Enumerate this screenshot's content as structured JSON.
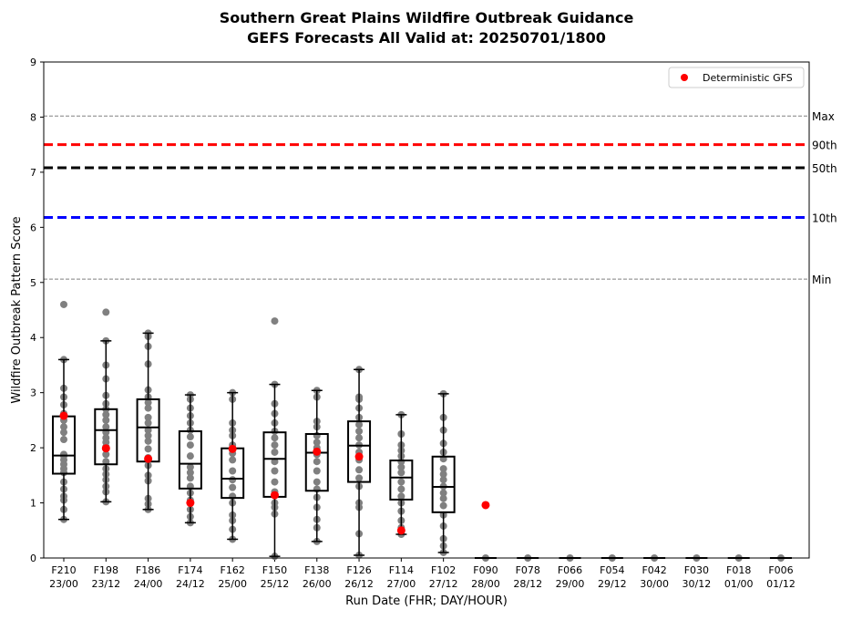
{
  "chart_data": {
    "type": "box",
    "title_line1": "Southern Great Plains Wildfire Outbreak Guidance",
    "title_line2": "GEFS Forecasts All Valid at: 20250701/1800",
    "xlabel": "Run Date (FHR; DAY/HOUR)",
    "ylabel": "Wildfire Outbreak Pattern Score",
    "ylim": [
      0,
      9
    ],
    "yticks": [
      "0",
      "1",
      "2",
      "3",
      "4",
      "5",
      "6",
      "7",
      "8",
      "9"
    ],
    "legend": {
      "label": "Deterministic GFS",
      "position": "top-right"
    },
    "colors": {
      "ensemble_point": "#808080",
      "deterministic": "#ff0000",
      "p90": "#ff0000",
      "p50": "#000000",
      "p10": "#0000ff",
      "minmax": "#808080"
    },
    "climatology_lines": [
      {
        "label": "Max",
        "value": 8.02,
        "style": "thin-dashed",
        "color": "#808080"
      },
      {
        "label": "90th",
        "value": 7.5,
        "style": "thick-dashed",
        "color": "#ff0000"
      },
      {
        "label": "50th",
        "value": 7.08,
        "style": "thick-dashed",
        "color": "#000000"
      },
      {
        "label": "10th",
        "value": 6.18,
        "style": "thick-dashed",
        "color": "#0000ff"
      },
      {
        "label": "Min",
        "value": 5.06,
        "style": "thin-dashed",
        "color": "#808080"
      }
    ],
    "categories": [
      {
        "fhr": "F210",
        "date": "23/00",
        "whisker_low": 0.7,
        "q1": 1.53,
        "median": 1.86,
        "q3": 2.57,
        "whisker_high": 3.6,
        "deterministic": 2.58,
        "members": [
          0.7,
          0.88,
          1.05,
          1.12,
          1.25,
          1.38,
          1.55,
          1.62,
          1.7,
          1.78,
          1.85,
          1.88,
          2.15,
          2.28,
          2.38,
          2.5,
          2.62,
          2.78,
          2.92,
          3.08,
          3.6,
          4.6
        ]
      },
      {
        "fhr": "F198",
        "date": "23/12",
        "whisker_low": 1.02,
        "q1": 1.7,
        "median": 2.32,
        "q3": 2.7,
        "whisker_high": 3.94,
        "deterministic": 1.99,
        "members": [
          1.02,
          1.2,
          1.3,
          1.42,
          1.52,
          1.62,
          1.75,
          1.88,
          2.02,
          2.1,
          2.18,
          2.28,
          2.38,
          2.5,
          2.6,
          2.7,
          2.8,
          2.95,
          3.25,
          3.5,
          3.94,
          4.46
        ]
      },
      {
        "fhr": "F186",
        "date": "24/00",
        "whisker_low": 0.88,
        "q1": 1.75,
        "median": 2.37,
        "q3": 2.88,
        "whisker_high": 4.08,
        "deterministic": 1.8,
        "members": [
          0.88,
          0.98,
          1.08,
          1.4,
          1.5,
          1.68,
          1.82,
          1.98,
          2.12,
          2.22,
          2.32,
          2.45,
          2.55,
          2.72,
          2.82,
          2.92,
          3.05,
          3.52,
          3.84,
          4.02,
          4.08
        ]
      },
      {
        "fhr": "F174",
        "date": "24/12",
        "whisker_low": 0.64,
        "q1": 1.26,
        "median": 1.71,
        "q3": 2.3,
        "whisker_high": 2.96,
        "deterministic": 1.0,
        "members": [
          0.64,
          0.75,
          0.88,
          1.05,
          1.18,
          1.3,
          1.45,
          1.55,
          1.65,
          1.85,
          2.05,
          2.2,
          2.32,
          2.45,
          2.58,
          2.72,
          2.88,
          2.96
        ]
      },
      {
        "fhr": "F162",
        "date": "25/00",
        "whisker_low": 0.34,
        "q1": 1.09,
        "median": 1.44,
        "q3": 1.99,
        "whisker_high": 3.0,
        "deterministic": 1.98,
        "members": [
          0.34,
          0.52,
          0.68,
          0.78,
          1.0,
          1.12,
          1.28,
          1.42,
          1.58,
          1.78,
          1.9,
          2.05,
          2.22,
          2.32,
          2.45,
          2.88,
          3.0
        ]
      },
      {
        "fhr": "F150",
        "date": "25/12",
        "whisker_low": 0.03,
        "q1": 1.11,
        "median": 1.8,
        "q3": 2.28,
        "whisker_high": 3.15,
        "deterministic": 1.14,
        "members": [
          0.03,
          0.8,
          0.92,
          1.0,
          1.2,
          1.38,
          1.58,
          1.75,
          1.92,
          2.05,
          2.18,
          2.3,
          2.45,
          2.62,
          2.8,
          3.15,
          4.3
        ]
      },
      {
        "fhr": "F138",
        "date": "26/00",
        "whisker_low": 0.3,
        "q1": 1.22,
        "median": 1.91,
        "q3": 2.25,
        "whisker_high": 3.04,
        "deterministic": 1.93,
        "members": [
          0.3,
          0.55,
          0.7,
          0.92,
          1.1,
          1.25,
          1.38,
          1.58,
          1.75,
          1.88,
          2.0,
          2.1,
          2.22,
          2.38,
          2.48,
          2.92,
          3.04
        ]
      },
      {
        "fhr": "F126",
        "date": "26/12",
        "whisker_low": 0.05,
        "q1": 1.38,
        "median": 2.04,
        "q3": 2.48,
        "whisker_high": 3.42,
        "deterministic": 1.84,
        "members": [
          0.05,
          0.44,
          0.92,
          1.0,
          1.3,
          1.45,
          1.6,
          1.78,
          1.92,
          2.05,
          2.18,
          2.3,
          2.42,
          2.55,
          2.72,
          2.88,
          2.92,
          3.42
        ]
      },
      {
        "fhr": "F114",
        "date": "27/00",
        "whisker_low": 0.43,
        "q1": 1.06,
        "median": 1.46,
        "q3": 1.77,
        "whisker_high": 2.6,
        "deterministic": 0.5,
        "members": [
          0.43,
          0.55,
          0.68,
          0.85,
          1.0,
          1.12,
          1.25,
          1.38,
          1.55,
          1.65,
          1.75,
          1.85,
          1.95,
          2.05,
          2.25,
          2.6
        ]
      },
      {
        "fhr": "F102",
        "date": "27/12",
        "whisker_low": 0.1,
        "q1": 0.83,
        "median": 1.29,
        "q3": 1.84,
        "whisker_high": 2.98,
        "deterministic": null,
        "members": [
          0.1,
          0.22,
          0.35,
          0.58,
          0.78,
          0.95,
          1.08,
          1.18,
          1.3,
          1.42,
          1.52,
          1.62,
          1.8,
          1.92,
          2.08,
          2.32,
          2.55,
          2.98
        ]
      },
      {
        "fhr": "F090",
        "date": "28/00",
        "whisker_low": 0,
        "q1": 0,
        "median": 0,
        "q3": 0,
        "whisker_high": 0,
        "deterministic": 0.96,
        "members": [
          0
        ]
      },
      {
        "fhr": "F078",
        "date": "28/12",
        "whisker_low": 0,
        "q1": 0,
        "median": 0,
        "q3": 0,
        "whisker_high": 0,
        "deterministic": null,
        "members": [
          0
        ]
      },
      {
        "fhr": "F066",
        "date": "29/00",
        "whisker_low": 0,
        "q1": 0,
        "median": 0,
        "q3": 0,
        "whisker_high": 0,
        "deterministic": null,
        "members": [
          0
        ]
      },
      {
        "fhr": "F054",
        "date": "29/12",
        "whisker_low": 0,
        "q1": 0,
        "median": 0,
        "q3": 0,
        "whisker_high": 0,
        "deterministic": null,
        "members": [
          0
        ]
      },
      {
        "fhr": "F042",
        "date": "30/00",
        "whisker_low": 0,
        "q1": 0,
        "median": 0,
        "q3": 0,
        "whisker_high": 0,
        "deterministic": null,
        "members": [
          0
        ]
      },
      {
        "fhr": "F030",
        "date": "30/12",
        "whisker_low": 0,
        "q1": 0,
        "median": 0,
        "q3": 0,
        "whisker_high": 0,
        "deterministic": null,
        "members": [
          0
        ]
      },
      {
        "fhr": "F018",
        "date": "01/00",
        "whisker_low": 0,
        "q1": 0,
        "median": 0,
        "q3": 0,
        "whisker_high": 0,
        "deterministic": null,
        "members": [
          0
        ]
      },
      {
        "fhr": "F006",
        "date": "01/12",
        "whisker_low": 0,
        "q1": 0,
        "median": 0,
        "q3": 0,
        "whisker_high": 0,
        "deterministic": null,
        "members": [
          0
        ]
      }
    ]
  }
}
